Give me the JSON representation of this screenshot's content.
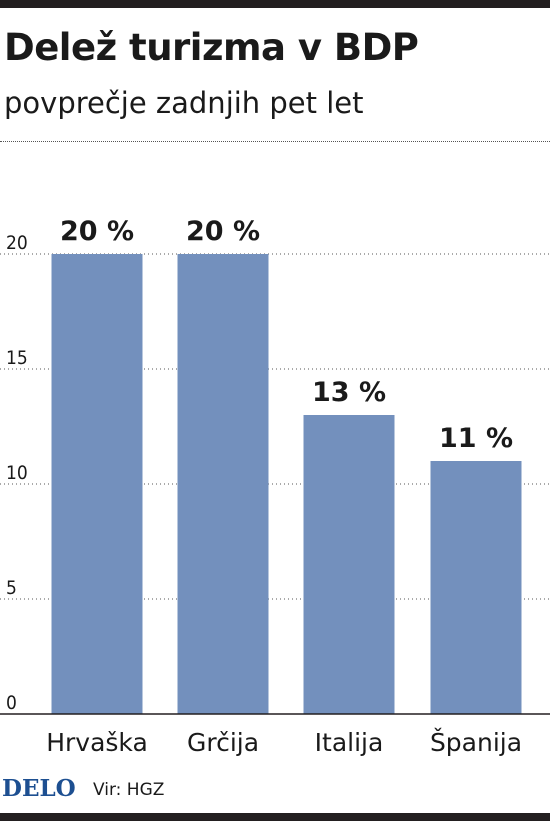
{
  "header": {
    "title": "Delež turizma v BDP",
    "subtitle": "povprečje zadnjih pet let"
  },
  "footer": {
    "logo": "DELO",
    "source": "Vir: HGZ"
  },
  "colors": {
    "bar": "#7390bd",
    "text": "#1a1a1a",
    "logo": "#1d4f91"
  },
  "chart_data": {
    "type": "bar",
    "categories": [
      "Hrvaška",
      "Grčija",
      "Italija",
      "Španija"
    ],
    "values": [
      20,
      20,
      13,
      11
    ],
    "data_labels": [
      "20 %",
      "20 %",
      "13 %",
      "11 %"
    ],
    "y_ticks": [
      0,
      5,
      10,
      15,
      20
    ],
    "ylim": [
      0,
      20
    ],
    "grid": true,
    "legend": "none"
  }
}
